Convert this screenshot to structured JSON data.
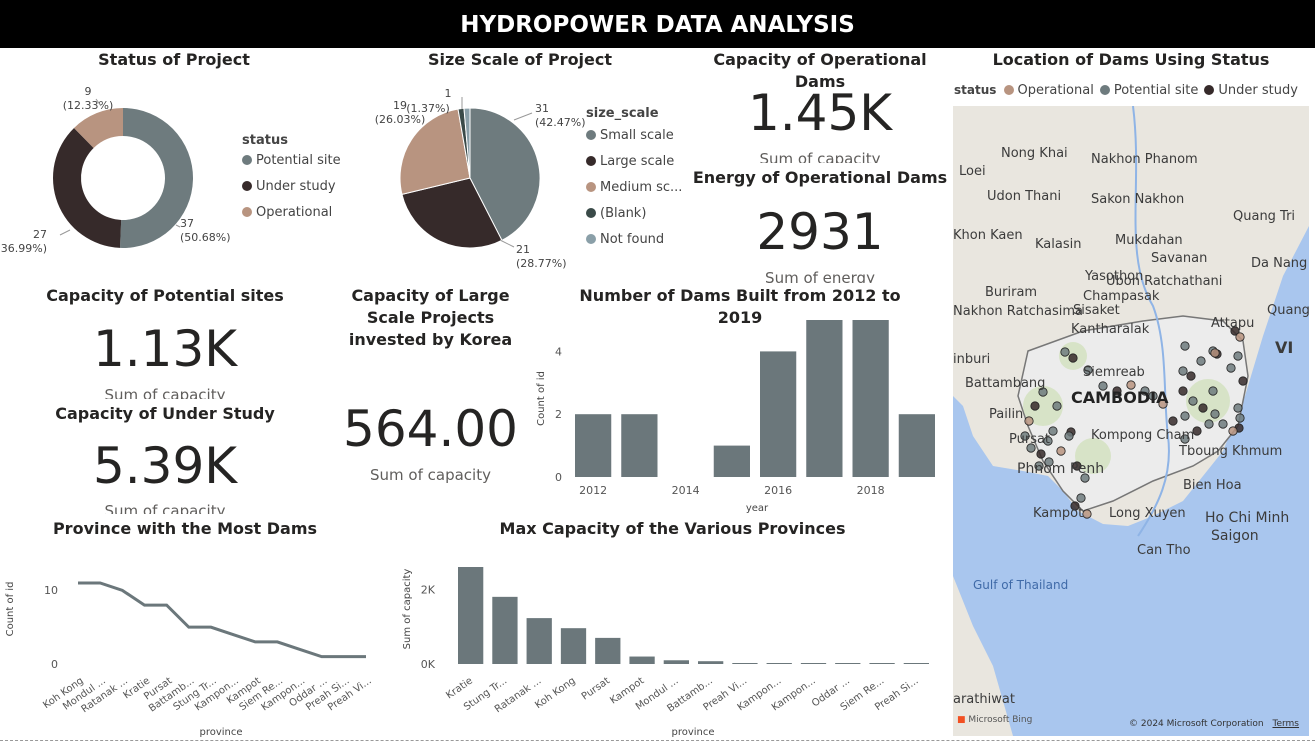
{
  "header": {
    "title": "HYDROPOWER DATA ANALYSIS"
  },
  "colors": {
    "potential": "#6e7b7e",
    "under_study": "#362a2a",
    "operational": "#b89480",
    "blank": "#3a4a48",
    "notfound": "#8a9fa8",
    "bar": "#6b777b"
  },
  "status_donut": {
    "title": "Status of Project",
    "legend_title": "status",
    "slices": [
      {
        "label": "Potential site",
        "value": 37,
        "pct": "(50.68%)",
        "color": "#6e7b7e"
      },
      {
        "label": "Under study",
        "value": 27,
        "pct": "(36.99%)",
        "color": "#362a2a"
      },
      {
        "label": "Operational",
        "value": 9,
        "pct": "(12.33%)",
        "color": "#b89480"
      }
    ]
  },
  "size_pie": {
    "title": "Size Scale of Project",
    "legend_title": "size_scale",
    "legend_items": [
      "Small scale",
      "Large scale",
      "Medium sc...",
      "(Blank)",
      "Not found"
    ],
    "slices": [
      {
        "label": "Small scale",
        "value": 31,
        "pct": "(42.47%)",
        "color": "#6e7b7e"
      },
      {
        "label": "Large scale",
        "value": 21,
        "pct": "(28.77%)",
        "color": "#362a2a"
      },
      {
        "label": "Medium scale",
        "value": 19,
        "pct": "(26.03%)",
        "color": "#b89480"
      },
      {
        "label": "(Blank)",
        "value": 1,
        "pct": "(1.37%)",
        "color": "#3a4a48"
      },
      {
        "label": "Not found",
        "value": 1,
        "pct": "",
        "color": "#8a9fa8"
      }
    ]
  },
  "kpis": {
    "operational_capacity": {
      "title": "Capacity of Operational Dams",
      "value": "1.45K",
      "sub": "Sum of capacity"
    },
    "operational_energy": {
      "title": "Energy of Operational Dams",
      "value": "2931",
      "sub": "Sum of energy"
    },
    "potential_capacity": {
      "title": "Capacity of Potential sites",
      "value": "1.13K",
      "sub": "Sum of capacity"
    },
    "under_study_capacity": {
      "title": "Capacity of Under Study",
      "value": "5.39K",
      "sub": "Sum of capacity"
    },
    "korea_capacity": {
      "title": "Capacity of Large Scale Projects invested by Korea",
      "value": "564.00",
      "sub": "Sum of capacity"
    }
  },
  "chart_data": [
    {
      "type": "bar",
      "title": "Number of Dams Built from 2012 to 2019",
      "xlabel": "year",
      "ylabel": "Count of id",
      "x": [
        2012,
        2013,
        2014,
        2015,
        2016,
        2017,
        2018,
        2019
      ],
      "values": [
        2,
        2,
        0,
        1,
        4,
        5,
        5,
        2
      ],
      "xticks": [
        "2012",
        "2014",
        "2016",
        "2018"
      ],
      "yticks": [
        "0",
        "2",
        "4"
      ],
      "ylim": [
        0,
        5
      ]
    },
    {
      "type": "line",
      "title": "Province with the Most Dams",
      "xlabel": "province",
      "ylabel": "Count of id",
      "categories": [
        "Koh Kong",
        "Mondul ...",
        "Ratanak ...",
        "Kratie",
        "Pursat",
        "Battamb...",
        "Stung Tr...",
        "Kampon...",
        "Kampot",
        "Siem Re...",
        "Kampon...",
        "Oddar ...",
        "Preah Si...",
        "Preah Vi..."
      ],
      "values": [
        11,
        11,
        10,
        8,
        8,
        5,
        5,
        4,
        3,
        3,
        2,
        1,
        1,
        1
      ],
      "yticks": [
        "0",
        "10"
      ],
      "ylim": [
        0,
        12
      ]
    },
    {
      "type": "bar",
      "title": "Max Capacity of the Various Provinces",
      "xlabel": "province",
      "ylabel": "Sum of capacity",
      "categories": [
        "Kratie",
        "Stung Tr...",
        "Ratanak ...",
        "Koh Kong",
        "Pursat",
        "Kampot",
        "Mondul ...",
        "Battamb...",
        "Preah Vi...",
        "Kampon...",
        "Kampon...",
        "Oddar ...",
        "Siem Re...",
        "Preah Si..."
      ],
      "values": [
        2600,
        1800,
        1230,
        960,
        700,
        200,
        100,
        75,
        20,
        15,
        10,
        8,
        6,
        5
      ],
      "yticks": [
        "0K",
        "2K"
      ],
      "ylim": [
        0,
        2800
      ]
    }
  ],
  "map": {
    "title": "Location of Dams Using Status",
    "legend_title": "status",
    "legend_items": [
      {
        "label": "Operational",
        "color": "#b89480"
      },
      {
        "label": "Potential site",
        "color": "#6e7b7e"
      },
      {
        "label": "Under study",
        "color": "#362a2a"
      }
    ],
    "labels": [
      "Nong Khai",
      "Nakhon Phanom",
      "Loei",
      "Udon Thani",
      "Sakon Nakhon",
      "Quang Tri",
      "Khon Kaen",
      "Kalasin",
      "Mukdahan",
      "Savanan",
      "Da Nang",
      "Yasothon",
      "Ubon Ratchathani",
      "Buriram",
      "Sisaket",
      "Champasak",
      "Nakhon Ratchasima",
      "Kantharalak",
      "Attapu",
      "Quang",
      "Siemreab",
      "Battambang",
      "CAMBODIA",
      "Pailin",
      "Kompong Cham",
      "Pursat",
      "Phnom Penh",
      "Tboung Khmum",
      "Bien Hoa",
      "Kampot",
      "Long Xuyen",
      "Ho Chi Minh",
      "Saigon",
      "Can Tho",
      "Gulf of Thailand",
      "arathiwat",
      "VI",
      "inburi"
    ],
    "attribution": "© 2024 Microsoft Corporation",
    "terms": "Terms",
    "brand": "Microsoft Bing"
  }
}
